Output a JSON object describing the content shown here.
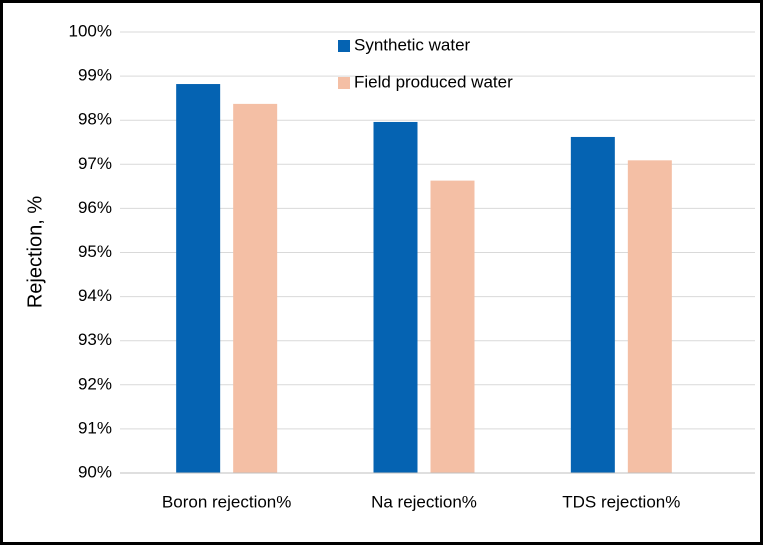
{
  "chart_data": {
    "type": "bar",
    "y_label": "Rejection, %",
    "categories": [
      "Boron rejection%",
      "Na rejection%",
      "TDS rejection%"
    ],
    "series": [
      {
        "name": "Synthetic water",
        "color": "#0563b2",
        "values": [
          98.82,
          97.96,
          97.62
        ]
      },
      {
        "name": "Field produced water",
        "color": "#f4bfa5",
        "values": [
          98.37,
          96.63,
          97.09
        ]
      }
    ],
    "ylim": [
      90,
      100
    ],
    "yticks": [
      {
        "value": 90,
        "label": "90%"
      },
      {
        "value": 91,
        "label": "91%"
      },
      {
        "value": 92,
        "label": "92%"
      },
      {
        "value": 93,
        "label": "93%"
      },
      {
        "value": 94,
        "label": "94%"
      },
      {
        "value": 95,
        "label": "95%"
      },
      {
        "value": 96,
        "label": "96%"
      },
      {
        "value": 97,
        "label": "97%"
      },
      {
        "value": 98,
        "label": "98%"
      },
      {
        "value": 99,
        "label": "99%"
      },
      {
        "value": 100,
        "label": "100%"
      }
    ],
    "grid": true,
    "legend": "top"
  }
}
